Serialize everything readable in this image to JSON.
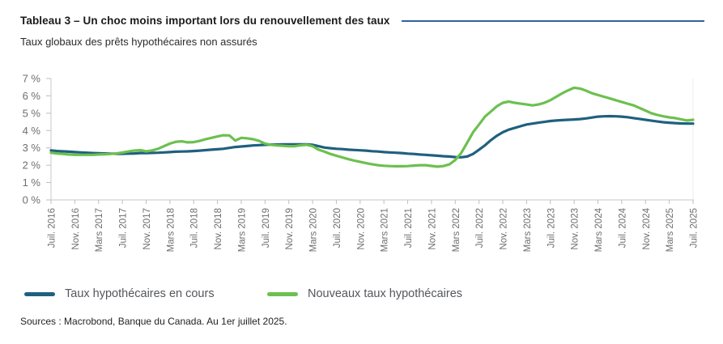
{
  "header": {
    "title": "Tableau 3 – Un choc moins important lors du renouvellement des taux",
    "subtitle": "Taux globaux des prêts hypothécaires non assurés"
  },
  "footer": {
    "source": "Sources : Macrobond, Banque du Canada. Au 1er juillet 2025."
  },
  "colors": {
    "outstanding_line": "#1f607f",
    "new_line": "#6cc04f",
    "title_rule": "#2f649e",
    "axis_line": "#d1d3d4",
    "tick": "#bcbec0",
    "axis_text": "#6d6e71"
  },
  "chart_data": {
    "type": "line",
    "title": "Taux globaux des prêts hypothécaires non assurés",
    "xlabel": "",
    "ylabel": "%",
    "ylim": [
      0,
      7
    ],
    "grid": false,
    "legend_position": "bottom",
    "y_tick_labels": [
      "0 %",
      "1 %",
      "2 %",
      "3 %",
      "4 %",
      "5 %",
      "6 %",
      "7 %"
    ],
    "x_tick_interval": 4,
    "x_tick_labels": [
      "Juil. 2016",
      "Nov. 2016",
      "Mars 2017",
      "Juil. 2017",
      "Nov. 2017",
      "Mars 2018",
      "Juil. 2018",
      "Nov. 2018",
      "Mars 2019",
      "Juil. 2019",
      "Nov. 2019",
      "Mars 2020",
      "Juil. 2020",
      "Nov. 2020",
      "Mars 2021",
      "Juil. 2021",
      "Nov. 2021",
      "Mars 2022",
      "Juil. 2022",
      "Nov. 2022",
      "Mars 2023",
      "Juil. 2023",
      "Nov. 2023",
      "Mars 2024",
      "Juil. 2024",
      "Nov. 2024",
      "Mars 2025",
      "Juil. 2025"
    ],
    "x_unit": "monthly from Juil. 2016 to Juil. 2025",
    "series": [
      {
        "name": "Taux hypothécaires en cours",
        "color": "#1f607f",
        "values": [
          2.85,
          2.82,
          2.8,
          2.78,
          2.76,
          2.74,
          2.72,
          2.7,
          2.69,
          2.68,
          2.67,
          2.66,
          2.66,
          2.67,
          2.68,
          2.7,
          2.7,
          2.71,
          2.72,
          2.74,
          2.76,
          2.78,
          2.79,
          2.8,
          2.82,
          2.84,
          2.87,
          2.9,
          2.92,
          2.95,
          3.0,
          3.05,
          3.08,
          3.11,
          3.14,
          3.16,
          3.18,
          3.19,
          3.19,
          3.2,
          3.2,
          3.2,
          3.2,
          3.2,
          3.18,
          3.1,
          3.02,
          2.98,
          2.95,
          2.93,
          2.9,
          2.88,
          2.86,
          2.84,
          2.81,
          2.79,
          2.76,
          2.74,
          2.72,
          2.7,
          2.67,
          2.65,
          2.62,
          2.6,
          2.57,
          2.55,
          2.52,
          2.5,
          2.47,
          2.46,
          2.5,
          2.65,
          2.9,
          3.15,
          3.45,
          3.7,
          3.9,
          4.05,
          4.15,
          4.25,
          4.35,
          4.4,
          4.45,
          4.5,
          4.55,
          4.58,
          4.6,
          4.62,
          4.64,
          4.66,
          4.7,
          4.75,
          4.8,
          4.82,
          4.83,
          4.82,
          4.8,
          4.77,
          4.72,
          4.67,
          4.62,
          4.57,
          4.52,
          4.48,
          4.45,
          4.43,
          4.41,
          4.4,
          4.4
        ]
      },
      {
        "name": "Nouveaux taux hypothécaires",
        "color": "#6cc04f",
        "values": [
          2.72,
          2.68,
          2.65,
          2.62,
          2.6,
          2.6,
          2.6,
          2.6,
          2.62,
          2.63,
          2.65,
          2.68,
          2.73,
          2.79,
          2.84,
          2.87,
          2.8,
          2.85,
          2.95,
          3.1,
          3.25,
          3.35,
          3.38,
          3.32,
          3.33,
          3.4,
          3.5,
          3.58,
          3.66,
          3.73,
          3.72,
          3.42,
          3.58,
          3.55,
          3.5,
          3.4,
          3.25,
          3.18,
          3.14,
          3.12,
          3.1,
          3.1,
          3.15,
          3.18,
          3.1,
          2.9,
          2.78,
          2.65,
          2.55,
          2.45,
          2.35,
          2.27,
          2.2,
          2.12,
          2.06,
          2.0,
          1.97,
          1.95,
          1.94,
          1.94,
          1.95,
          1.98,
          2.0,
          2.0,
          1.96,
          1.92,
          1.95,
          2.05,
          2.3,
          2.7,
          3.3,
          3.9,
          4.35,
          4.8,
          5.1,
          5.4,
          5.6,
          5.67,
          5.6,
          5.55,
          5.5,
          5.45,
          5.5,
          5.6,
          5.75,
          5.95,
          6.15,
          6.32,
          6.47,
          6.42,
          6.3,
          6.15,
          6.05,
          5.95,
          5.85,
          5.75,
          5.65,
          5.55,
          5.45,
          5.3,
          5.15,
          5.0,
          4.9,
          4.82,
          4.76,
          4.72,
          4.65,
          4.58,
          4.62
        ]
      }
    ]
  }
}
